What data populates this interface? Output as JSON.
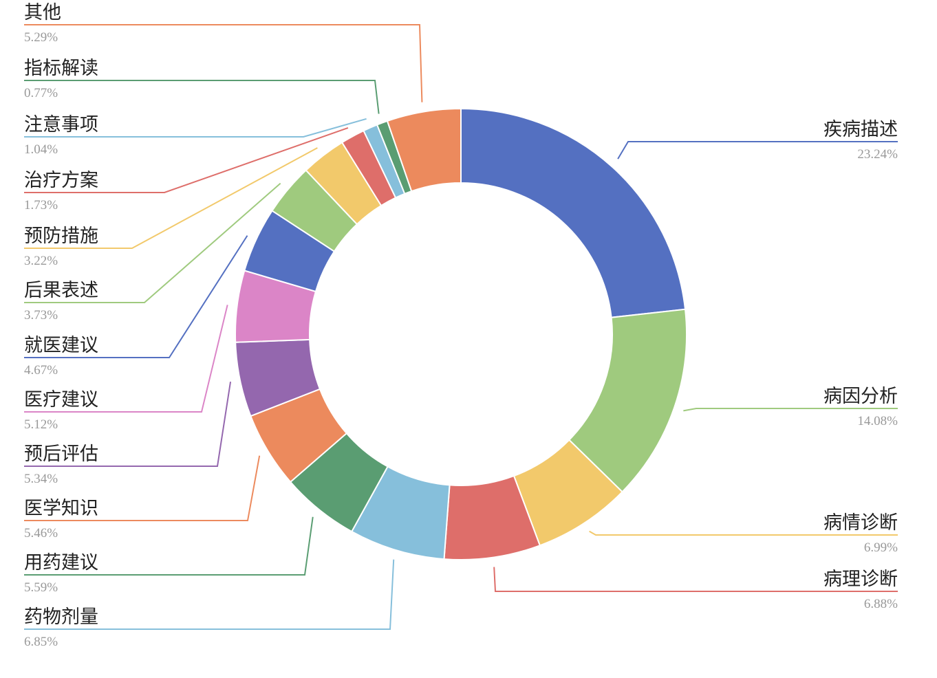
{
  "chart_data": {
    "type": "pie",
    "style": "donut",
    "title": "",
    "legend": "none",
    "slices": [
      {
        "label": "疾病描述",
        "value": 23.24,
        "value_label": "23.24%",
        "color": "#5470c1",
        "side": "right"
      },
      {
        "label": "病因分析",
        "value": 14.08,
        "value_label": "14.08%",
        "color": "#9fca7e",
        "side": "right"
      },
      {
        "label": "病情诊断",
        "value": 6.99,
        "value_label": "6.99%",
        "color": "#f2c96b",
        "side": "right"
      },
      {
        "label": "病理诊断",
        "value": 6.88,
        "value_label": "6.88%",
        "color": "#de6e6a",
        "side": "right"
      },
      {
        "label": "药物剂量",
        "value": 6.85,
        "value_label": "6.85%",
        "color": "#86bfdb",
        "side": "left"
      },
      {
        "label": "用药建议",
        "value": 5.59,
        "value_label": "5.59%",
        "color": "#5a9d72",
        "side": "left"
      },
      {
        "label": "医学知识",
        "value": 5.46,
        "value_label": "5.46%",
        "color": "#ec8a5d",
        "side": "left"
      },
      {
        "label": "预后评估",
        "value": 5.34,
        "value_label": "5.34%",
        "color": "#9467ae",
        "side": "left"
      },
      {
        "label": "医疗建议",
        "value": 5.12,
        "value_label": "5.12%",
        "color": "#db85c7",
        "side": "left"
      },
      {
        "label": "就医建议",
        "value": 4.67,
        "value_label": "4.67%",
        "color": "#5470c1",
        "side": "left"
      },
      {
        "label": "后果表述",
        "value": 3.73,
        "value_label": "3.73%",
        "color": "#9fca7e",
        "side": "left"
      },
      {
        "label": "预防措施",
        "value": 3.22,
        "value_label": "3.22%",
        "color": "#f2c96b",
        "side": "left"
      },
      {
        "label": "治疗方案",
        "value": 1.73,
        "value_label": "1.73%",
        "color": "#de6e6a",
        "side": "left"
      },
      {
        "label": "注意事项",
        "value": 1.04,
        "value_label": "1.04%",
        "color": "#86bfdb",
        "side": "left"
      },
      {
        "label": "指标解读",
        "value": 0.77,
        "value_label": "0.77%",
        "color": "#5a9d72",
        "side": "left"
      },
      {
        "label": "其他",
        "value": 5.29,
        "value_label": "5.29%",
        "color": "#ec8a5d",
        "side": "left"
      }
    ]
  }
}
